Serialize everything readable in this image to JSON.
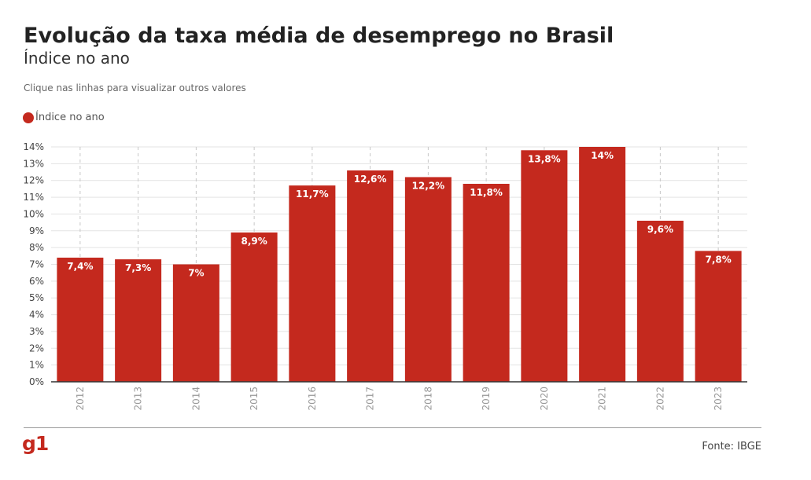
{
  "header": {
    "title": "Evolução da taxa média de desemprego no Brasil",
    "subtitle": "Índice no ano",
    "hint": "Clique nas linhas para visualizar outros valores"
  },
  "legend": {
    "label": "Índice no ano",
    "color": "#c4291e"
  },
  "colors": {
    "bar": "#c4291e",
    "bar_label": "#ffffff",
    "grid": "#e3e3e3",
    "axis": "#333333",
    "logo": "#c4291e"
  },
  "chart_data": {
    "type": "bar",
    "categories": [
      "2012",
      "2013",
      "2014",
      "2015",
      "2016",
      "2017",
      "2018",
      "2019",
      "2020",
      "2021",
      "2022",
      "2023"
    ],
    "series": [
      {
        "name": "Índice no ano",
        "values": [
          7.4,
          7.3,
          7.0,
          8.9,
          11.7,
          12.6,
          12.2,
          11.8,
          13.8,
          14.0,
          9.6,
          7.8
        ],
        "labels": [
          "7,4%",
          "7,3%",
          "7%",
          "8,9%",
          "11,7%",
          "12,6%",
          "12,2%",
          "11,8%",
          "13,8%",
          "14%",
          "9,6%",
          "7,8%"
        ]
      }
    ],
    "ylim": [
      0,
      14
    ],
    "yticks": [
      0,
      1,
      2,
      3,
      4,
      5,
      6,
      7,
      8,
      9,
      10,
      11,
      12,
      13,
      14
    ],
    "ytick_labels": [
      "0%",
      "1%",
      "2%",
      "3%",
      "4%",
      "5%",
      "6%",
      "7%",
      "8%",
      "9%",
      "10%",
      "11%",
      "12%",
      "13%",
      "14%"
    ],
    "grid": true,
    "legend_position": "top-left"
  },
  "footer": {
    "logo": "g1",
    "source": "Fonte: IBGE"
  }
}
